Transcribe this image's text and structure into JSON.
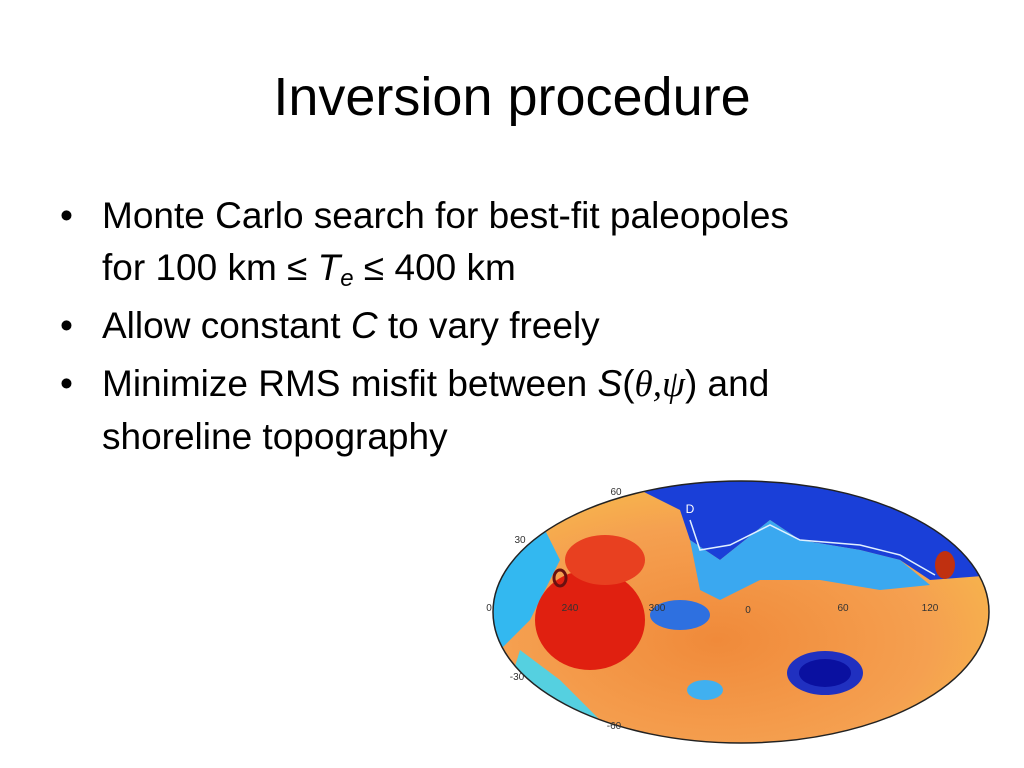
{
  "slide": {
    "title": "Inversion procedure",
    "bullets": [
      [
        "Monte Carlo search for best-fit paleopoles",
        "for 100 km ≤ ",
        "T",
        "e",
        " ≤ 400 km"
      ],
      [
        "Allow constant ",
        "C",
        " to vary freely"
      ],
      [
        "Minimize RMS misfit between ",
        "S",
        "(",
        "θ,ψ",
        ") and",
        "shoreline topography"
      ]
    ],
    "map": {
      "latitude_labels": [
        "60",
        "30",
        "0",
        "-30",
        "-60"
      ],
      "longitude_labels": [
        "240",
        "300",
        "0",
        "60",
        "120"
      ],
      "marker": "D"
    }
  }
}
